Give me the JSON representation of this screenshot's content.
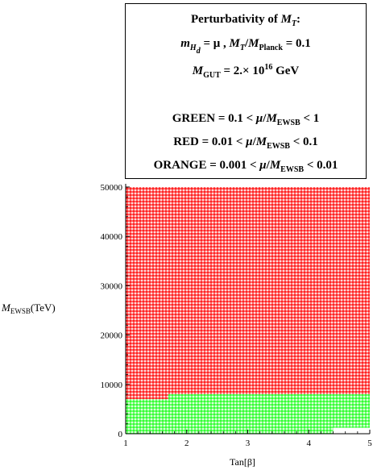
{
  "legend": {
    "title": "Perturbativity of",
    "title_var": "M",
    "title_var_sub": "T",
    "title_colon": ":",
    "cond_m": "m",
    "cond_m_sub": "H",
    "cond_m_subsub": "d",
    "cond_eq": " = μ , ",
    "cond_mt": "M",
    "cond_mt_sub": "T",
    "cond_slash": "/",
    "cond_mp": "M",
    "cond_mp_sub": "Planck",
    "cond_val": " = 0.1",
    "gut_m": "M",
    "gut_sub": "GUT",
    "gut_val": " = 2.× 10",
    "gut_exp": "16",
    "gut_unit": " GeV",
    "green_prefix": "GREEN = 0.1 < ",
    "green_mu": "μ",
    "green_slash": "/",
    "green_m": "M",
    "green_sub": "EWSB",
    "green_suffix": " < 1",
    "red_prefix": "RED = 0.01 < ",
    "red_mu": "μ",
    "red_slash": "/",
    "red_m": "M",
    "red_sub": "EWSB",
    "red_suffix": " < 0.1",
    "orange_prefix": "ORANGE = 0.001 < ",
    "orange_mu": "μ",
    "orange_slash": "/",
    "orange_m": "M",
    "orange_sub": "EWSB",
    "orange_suffix": " < 0.01"
  },
  "axis": {
    "ylabel_m": "M",
    "ylabel_sub": "EWSB",
    "ylabel_unit": "(TeV)",
    "xlabel": "Tan[β]"
  },
  "colors": {
    "green": "#33ff33",
    "red": "#ff2222",
    "orange": "#ff9900",
    "axis": "#000000"
  },
  "chart_data": {
    "type": "scatter",
    "xlim": [
      1,
      5
    ],
    "ylim": [
      0,
      50000
    ],
    "xticks": [
      1,
      2,
      3,
      4,
      5
    ],
    "yticks": [
      0,
      10000,
      20000,
      30000,
      40000,
      50000
    ],
    "grid": false,
    "legend_placement": "top-right",
    "series": [
      {
        "name": "GREEN",
        "color": "#33ff33",
        "region": "0.1 < μ/M_EWSB < 1",
        "boundary": {
          "x": [
            1.0,
            1.7,
            1.7,
            4.4,
            4.4,
            5.0
          ],
          "y": [
            7000,
            7000,
            8000,
            8000,
            8000,
            8000
          ]
        },
        "lower_cutoff": {
          "x": [
            1.0,
            4.4,
            4.4,
            5.0
          ],
          "y": [
            0,
            0,
            1200,
            1200
          ]
        }
      },
      {
        "name": "RED",
        "color": "#ff2222",
        "region": "0.01 < μ/M_EWSB < 0.1",
        "from_boundary_to": 50000
      },
      {
        "name": "ORANGE",
        "color": "#ff9900",
        "region": "0.001 < μ/M_EWSB < 0.01",
        "points": []
      }
    ]
  }
}
